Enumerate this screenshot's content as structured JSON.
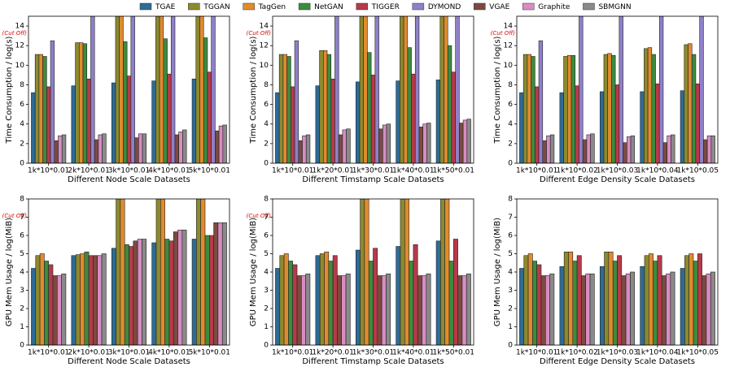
{
  "legend": {
    "series": [
      {
        "name": "TGAE",
        "color": "#2e6b96"
      },
      {
        "name": "TGGAN",
        "color": "#8c8a2f"
      },
      {
        "name": "TagGen",
        "color": "#e08b2e"
      },
      {
        "name": "NetGAN",
        "color": "#3e8b3e"
      },
      {
        "name": "TIGGER",
        "color": "#b73a4a"
      },
      {
        "name": "DYMOND",
        "color": "#8f80c9"
      },
      {
        "name": "VGAE",
        "color": "#7b4b40"
      },
      {
        "name": "Graphite",
        "color": "#d98cc4"
      },
      {
        "name": "SBMGNN",
        "color": "#8a8a8a"
      }
    ]
  },
  "chart_data": [
    {
      "type": "bar",
      "ylabel": "Time Consumption / log(s)",
      "xlabel": "Different Node Scale Datasets",
      "annotation": "(Cut Off)",
      "categories": [
        "1k*10*0.01",
        "2k*10*0.01",
        "3k*10*0.01",
        "4k*10*0.01",
        "5k*10*0.01"
      ],
      "ylim": [
        0,
        15
      ],
      "yticks": [
        0,
        2,
        4,
        6,
        8,
        10,
        12,
        14
      ],
      "series": [
        {
          "values": [
            7.2,
            7.9,
            8.2,
            8.4,
            8.6
          ]
        },
        {
          "values": [
            11.1,
            12.3,
            15,
            15,
            15
          ]
        },
        {
          "values": [
            11.1,
            12.3,
            15,
            15,
            15
          ]
        },
        {
          "values": [
            10.9,
            12.2,
            12.4,
            12.7,
            12.8
          ]
        },
        {
          "values": [
            7.8,
            8.6,
            8.9,
            9.1,
            9.3
          ]
        },
        {
          "values": [
            12.5,
            15,
            15,
            15,
            15
          ]
        },
        {
          "values": [
            2.3,
            2.4,
            2.6,
            2.9,
            3.3
          ]
        },
        {
          "values": [
            2.8,
            2.9,
            3.0,
            3.2,
            3.8
          ]
        },
        {
          "values": [
            2.9,
            3.0,
            3.0,
            3.4,
            3.9
          ]
        }
      ]
    },
    {
      "type": "bar",
      "ylabel": "Time Consumption / log(s)",
      "xlabel": "Different Timstamp Scale Datasets",
      "annotation": "(Cut Off)",
      "categories": [
        "1k*10*0.01",
        "1k*20*0.01",
        "1k*30*0.01",
        "1k*40*0.01",
        "1k*50*0.01"
      ],
      "ylim": [
        0,
        15
      ],
      "yticks": [
        0,
        2,
        4,
        6,
        8,
        10,
        12,
        14
      ],
      "series": [
        {
          "values": [
            7.2,
            7.9,
            8.3,
            8.4,
            8.5
          ]
        },
        {
          "values": [
            11.1,
            11.5,
            15,
            15,
            15
          ]
        },
        {
          "values": [
            11.1,
            11.5,
            15,
            15,
            15
          ]
        },
        {
          "values": [
            10.9,
            11.1,
            11.3,
            11.8,
            12.0
          ]
        },
        {
          "values": [
            7.8,
            8.6,
            9.0,
            9.1,
            9.3
          ]
        },
        {
          "values": [
            12.5,
            15,
            15,
            15,
            15
          ]
        },
        {
          "values": [
            2.3,
            2.9,
            3.5,
            3.7,
            4.1
          ]
        },
        {
          "values": [
            2.8,
            3.4,
            3.9,
            4.0,
            4.4
          ]
        },
        {
          "values": [
            2.9,
            3.5,
            4.0,
            4.1,
            4.5
          ]
        }
      ]
    },
    {
      "type": "bar",
      "ylabel": "Time Consumption / log(s)",
      "xlabel": "Different Edge Density Scale Datasets",
      "annotation": "(Cut Off)",
      "categories": [
        "1k*10*0.01",
        "1k*10*0.02",
        "1k*10*0.03",
        "1k*10*0.04",
        "1k*10*0.05"
      ],
      "ylim": [
        0,
        15
      ],
      "yticks": [
        0,
        2,
        4,
        6,
        8,
        10,
        12,
        14
      ],
      "series": [
        {
          "values": [
            7.2,
            7.2,
            7.3,
            7.3,
            7.4
          ]
        },
        {
          "values": [
            11.1,
            10.9,
            11.1,
            11.7,
            12.1
          ]
        },
        {
          "values": [
            11.1,
            11.0,
            11.2,
            11.8,
            12.2
          ]
        },
        {
          "values": [
            10.9,
            11.0,
            11.0,
            11.1,
            11.1
          ]
        },
        {
          "values": [
            7.8,
            7.9,
            8.0,
            8.1,
            8.1
          ]
        },
        {
          "values": [
            12.5,
            15,
            15,
            15,
            15
          ]
        },
        {
          "values": [
            2.3,
            2.4,
            2.1,
            2.1,
            2.4
          ]
        },
        {
          "values": [
            2.8,
            2.9,
            2.7,
            2.8,
            2.8
          ]
        },
        {
          "values": [
            2.9,
            3.0,
            2.8,
            2.9,
            2.8
          ]
        }
      ]
    },
    {
      "type": "bar",
      "ylabel": "GPU Mem Usage / log(MiB)",
      "xlabel": "Different Node Scale Datasets",
      "annotation": "(Cut Off)",
      "categories": [
        "1k*10*0.01",
        "2k*10*0.01",
        "3k*10*0.01",
        "4k*10*0.01",
        "5k*10*0.01"
      ],
      "ylim": [
        0,
        8
      ],
      "yticks": [
        0,
        1,
        2,
        3,
        4,
        5,
        6,
        7,
        8
      ],
      "series": [
        {
          "values": [
            4.2,
            4.9,
            5.3,
            5.6,
            5.8
          ]
        },
        {
          "values": [
            4.9,
            4.95,
            8,
            8,
            8
          ]
        },
        {
          "values": [
            5.0,
            5.0,
            8,
            8,
            8
          ]
        },
        {
          "values": [
            4.6,
            5.1,
            5.5,
            5.8,
            6.0
          ]
        },
        {
          "values": [
            4.4,
            4.9,
            5.4,
            5.7,
            6.0
          ]
        },
        {
          "values": [
            null,
            null,
            null,
            null,
            null
          ]
        },
        {
          "values": [
            3.8,
            4.9,
            5.7,
            6.2,
            6.7
          ]
        },
        {
          "values": [
            3.8,
            4.9,
            5.8,
            6.3,
            6.7
          ]
        },
        {
          "values": [
            3.9,
            5.0,
            5.8,
            6.3,
            6.7
          ]
        }
      ]
    },
    {
      "type": "bar",
      "ylabel": "GPU Mem Usage / log(MiB)",
      "xlabel": "Different Timstamp Scale Datasets",
      "annotation": "(Cut Off)",
      "categories": [
        "1k*10*0.01",
        "1k*20*0.01",
        "1k*30*0.01",
        "1k*40*0.01",
        "1k*50*0.01"
      ],
      "ylim": [
        0,
        8
      ],
      "yticks": [
        0,
        1,
        2,
        3,
        4,
        5,
        6,
        7,
        8
      ],
      "series": [
        {
          "values": [
            4.2,
            4.9,
            5.2,
            5.4,
            5.7
          ]
        },
        {
          "values": [
            4.9,
            5.0,
            8,
            8,
            8
          ]
        },
        {
          "values": [
            5.0,
            5.1,
            8,
            8,
            8
          ]
        },
        {
          "values": [
            4.6,
            4.6,
            4.6,
            4.6,
            4.6
          ]
        },
        {
          "values": [
            4.4,
            4.9,
            5.3,
            5.5,
            5.8
          ]
        },
        {
          "values": [
            null,
            null,
            null,
            null,
            null
          ]
        },
        {
          "values": [
            3.8,
            3.8,
            3.8,
            3.8,
            3.8
          ]
        },
        {
          "values": [
            3.8,
            3.8,
            3.8,
            3.8,
            3.8
          ]
        },
        {
          "values": [
            3.9,
            3.9,
            3.9,
            3.9,
            3.9
          ]
        }
      ]
    },
    {
      "type": "bar",
      "ylabel": "GPU Mem Usage / log(MiB)",
      "xlabel": "Different Edge Density Scale Datasets",
      "categories": [
        "1k*10*0.01",
        "1k*10*0.02",
        "1k*10*0.03",
        "1k*10*0.04",
        "1k*10*0.05"
      ],
      "ylim": [
        0,
        8
      ],
      "yticks": [
        0,
        1,
        2,
        3,
        4,
        5,
        6,
        7,
        8
      ],
      "series": [
        {
          "values": [
            4.2,
            4.3,
            4.3,
            4.3,
            4.2
          ]
        },
        {
          "values": [
            4.9,
            5.1,
            5.1,
            4.9,
            4.9
          ]
        },
        {
          "values": [
            5.0,
            5.1,
            5.1,
            5.0,
            5.0
          ]
        },
        {
          "values": [
            4.6,
            4.6,
            4.6,
            4.6,
            4.6
          ]
        },
        {
          "values": [
            4.4,
            4.9,
            4.9,
            4.9,
            5.0
          ]
        },
        {
          "values": [
            null,
            null,
            null,
            null,
            null
          ]
        },
        {
          "values": [
            3.8,
            3.8,
            3.8,
            3.8,
            3.8
          ]
        },
        {
          "values": [
            3.8,
            3.9,
            3.9,
            3.9,
            3.9
          ]
        },
        {
          "values": [
            3.9,
            3.9,
            4.0,
            4.0,
            4.0
          ]
        }
      ]
    }
  ]
}
